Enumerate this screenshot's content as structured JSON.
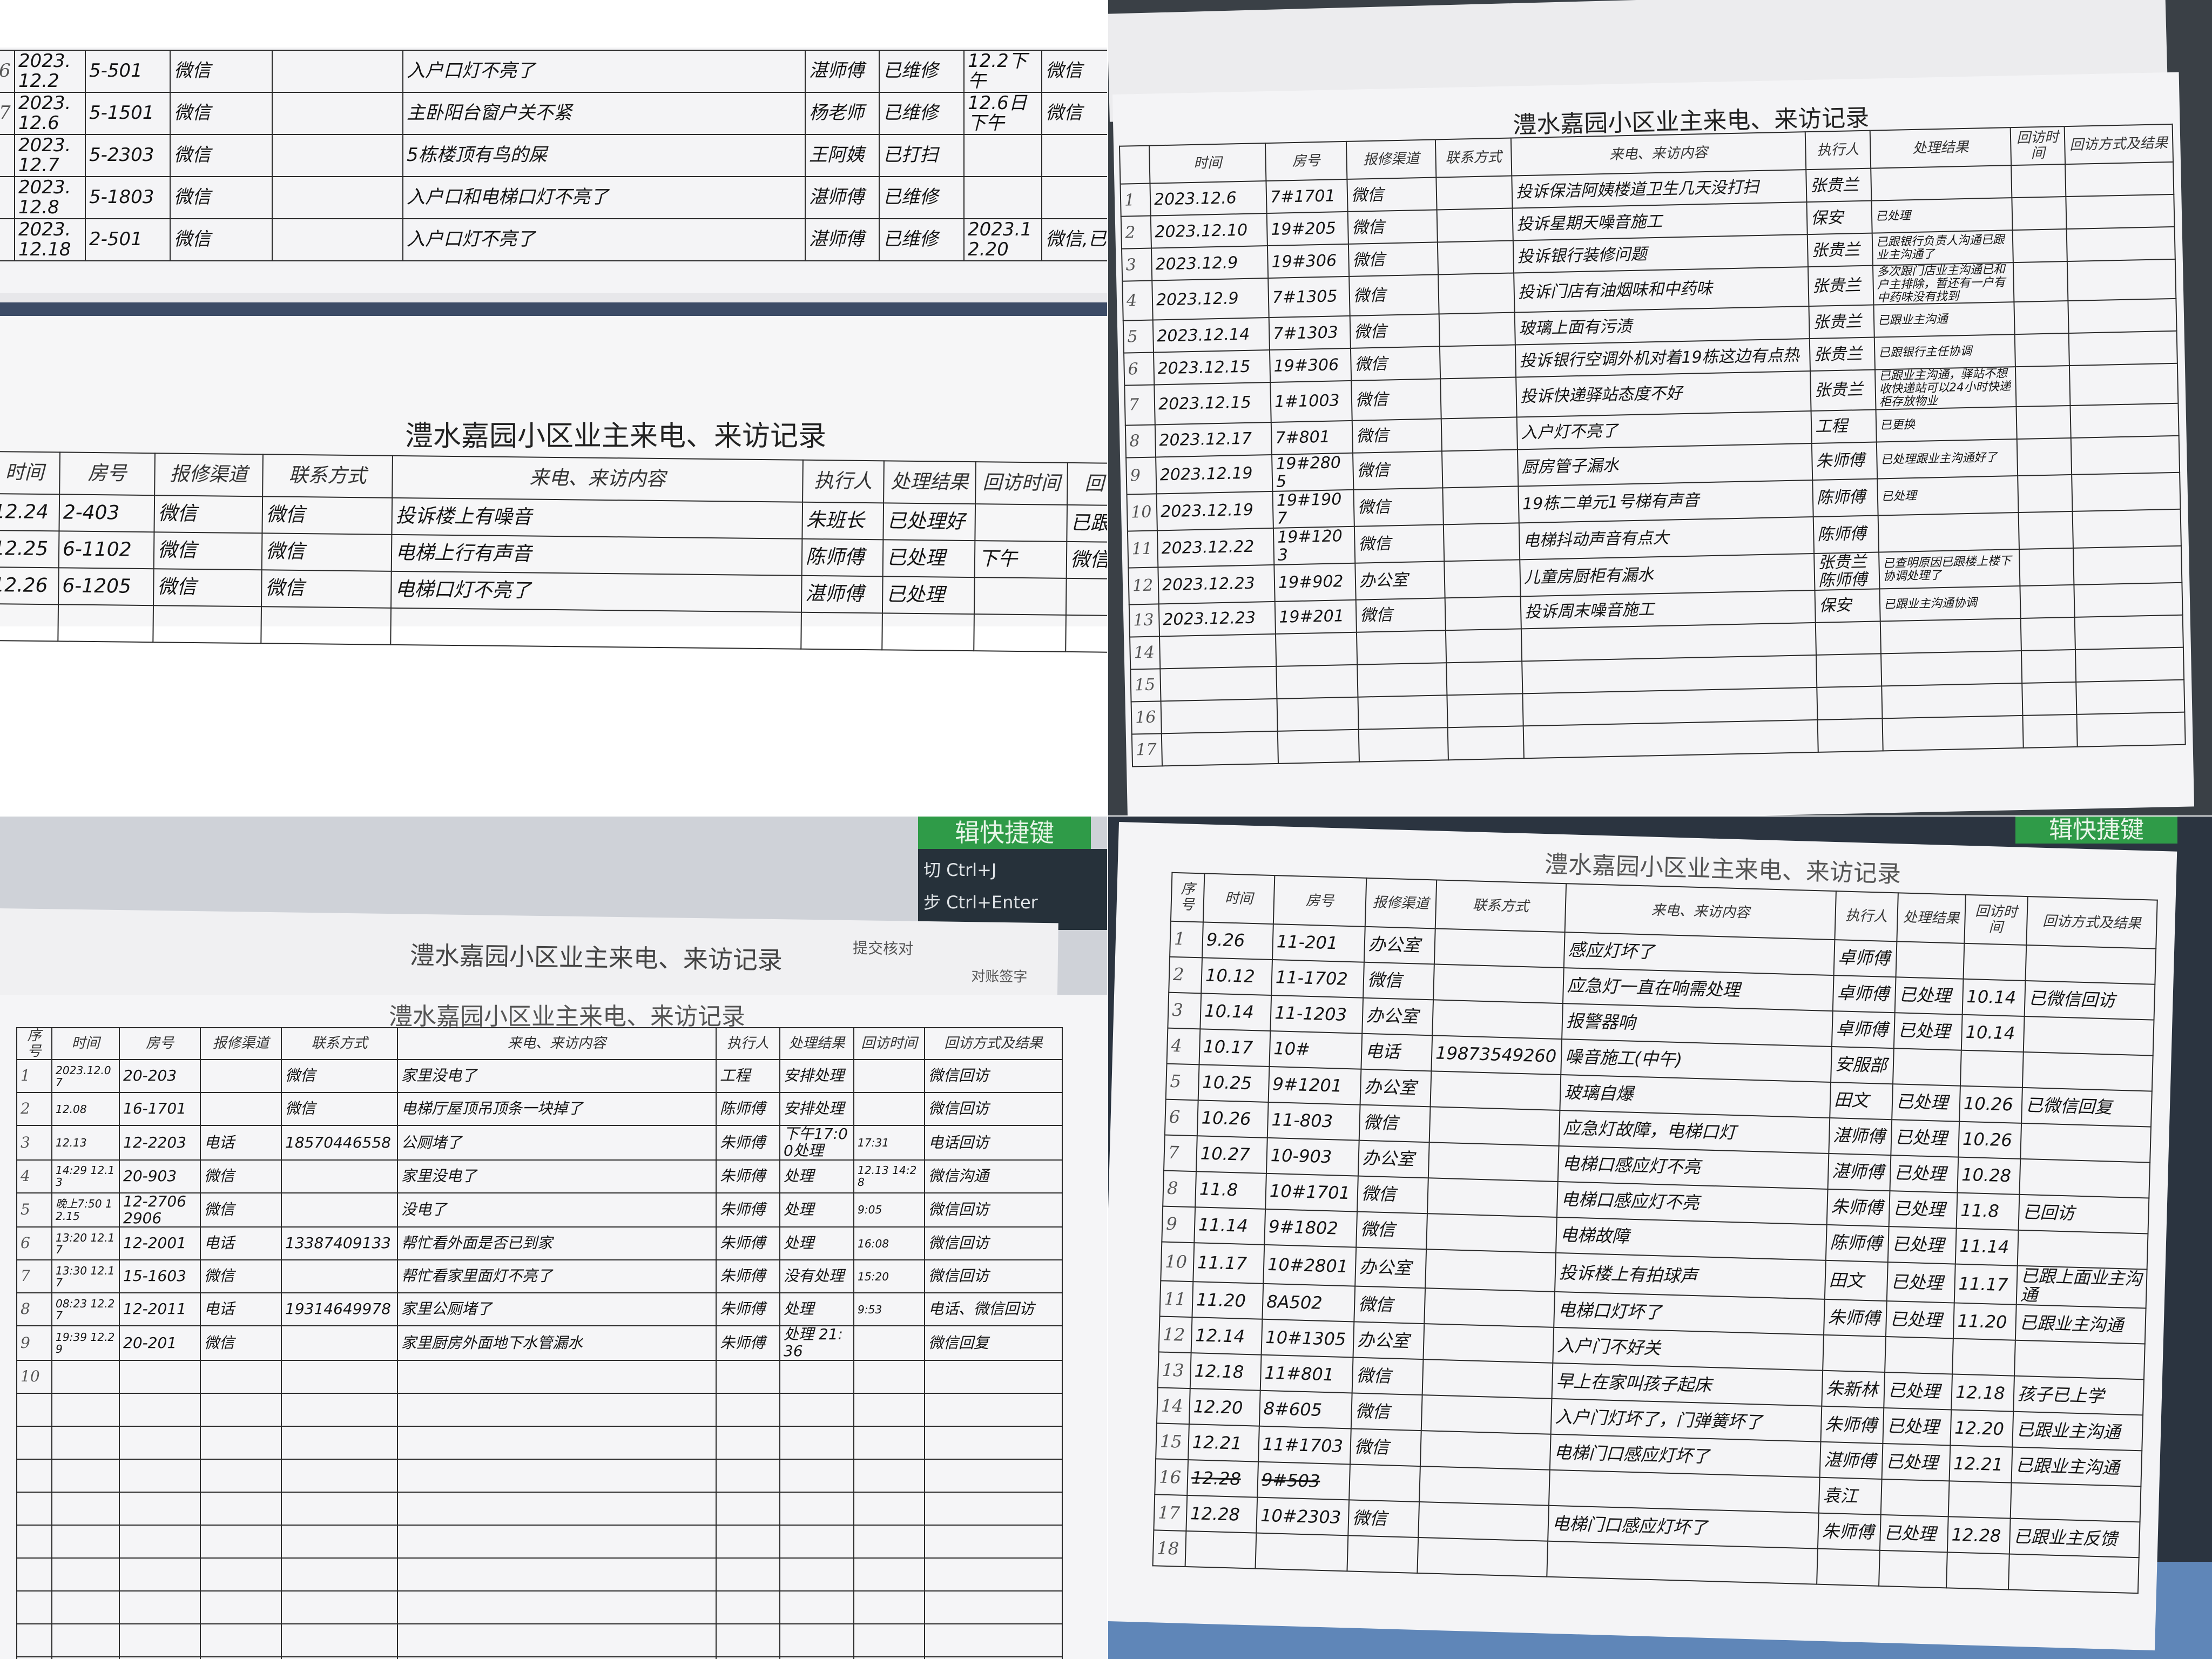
{
  "form_title": "澧水嘉园小区业主来电、来访记录",
  "columns": [
    "序号",
    "时间",
    "房号",
    "报修渠道",
    "联系方式",
    "来电、来访内容",
    "执行人",
    "处理结果",
    "回访时间",
    "回访方式及结果"
  ],
  "panels": [
    {
      "id": "top-left-upper",
      "header": null,
      "rows": [
        [
          "6",
          "2023.12.2",
          "5-501",
          "微信",
          "",
          "入户口灯不亮了",
          "湛师傅",
          "已维修",
          "12.2下午",
          "微信"
        ],
        [
          "7",
          "2023.12.6",
          "5-1501",
          "微信",
          "",
          "主卧阳台窗户关不紧",
          "杨老师",
          "已维修",
          "12.6日下午",
          "微信"
        ],
        [
          "",
          "2023.12.7",
          "5-2303",
          "微信",
          "",
          "5栋楼顶有鸟的屎",
          "王阿姨",
          "已打扫",
          "",
          ""
        ],
        [
          "",
          "2023.12.8",
          "5-1803",
          "微信",
          "",
          "入户口和电梯口灯不亮了",
          "湛师傅",
          "已维修",
          "",
          ""
        ],
        [
          "",
          "2023.12.18",
          "2-501",
          "微信",
          "",
          "入户口灯不亮了",
          "湛师傅",
          "已维修",
          "2023.12.20",
          "微信,已"
        ]
      ]
    },
    {
      "id": "top-left-lower",
      "header": [
        "时间",
        "房号",
        "报修渠道",
        "联系方式",
        "来电、来访内容",
        "执行人",
        "处理结果",
        "回访时间",
        "回"
      ],
      "rows": [
        [
          "12.24",
          "2-403",
          "微信",
          "微信",
          "投诉楼上有噪音",
          "朱班长",
          "已处理好",
          "",
          "已跟"
        ],
        [
          "12.25",
          "6-1102",
          "微信",
          "微信",
          "电梯上行有声音",
          "陈师傅",
          "已处理",
          "下午",
          "微信"
        ],
        [
          "12.26",
          "6-1205",
          "微信",
          "微信",
          "电梯口灯不亮了",
          "湛师傅",
          "已处理",
          "",
          ""
        ],
        [
          "",
          "",
          "",
          "",
          "",
          "",
          "",
          "",
          ""
        ]
      ]
    },
    {
      "id": "top-right",
      "header": [
        "",
        "时间",
        "房号",
        "报修渠道",
        "联系方式",
        "来电、来访内容",
        "执行人",
        "处理结果",
        "回访时间",
        "回访方式及结果"
      ],
      "rows": [
        [
          "1",
          "2023.12.6",
          "7#1701",
          "微信",
          "",
          "投诉保洁阿姨楼道卫生几天没打扫",
          "张贵兰",
          "",
          "",
          ""
        ],
        [
          "2",
          "2023.12.10",
          "19#205",
          "微信",
          "",
          "投诉星期天噪音施工",
          "保安",
          "已处理",
          "",
          ""
        ],
        [
          "3",
          "2023.12.9",
          "19#306",
          "微信",
          "",
          "投诉银行装修问题",
          "张贵兰",
          "已跟银行负责人沟通已跟业主沟通了",
          "",
          ""
        ],
        [
          "4",
          "2023.12.9",
          "7#1305",
          "微信",
          "",
          "投诉门店有油烟味和中药味",
          "张贵兰",
          "多次跟门店业主沟通已和户主排除，暂还有一户有中药味没有找到",
          "",
          ""
        ],
        [
          "5",
          "2023.12.14",
          "7#1303",
          "微信",
          "",
          "玻璃上面有污渍",
          "张贵兰",
          "已跟业主沟通",
          "",
          ""
        ],
        [
          "6",
          "2023.12.15",
          "19#306",
          "微信",
          "",
          "投诉银行空调外机对着19栋这边有点热",
          "张贵兰",
          "已跟银行主任协调",
          "",
          ""
        ],
        [
          "7",
          "2023.12.15",
          "1#1003",
          "微信",
          "",
          "投诉快递驿站态度不好",
          "张贵兰",
          "已跟业主沟通，驿站不想收快递站可以24小时快递柜存放物业",
          "",
          ""
        ],
        [
          "8",
          "2023.12.17",
          "7#801",
          "微信",
          "",
          "入户灯不亮了",
          "工程",
          "已更换",
          "",
          ""
        ],
        [
          "9",
          "2023.12.19",
          "19#2805",
          "微信",
          "",
          "厨房管子漏水",
          "朱师傅",
          "已处理跟业主沟通好了",
          "",
          ""
        ],
        [
          "10",
          "2023.12.19",
          "19#1907",
          "微信",
          "",
          "19栋二单元1号梯有声音",
          "陈师傅",
          "已处理",
          "",
          ""
        ],
        [
          "11",
          "2023.12.22",
          "19#1203",
          "微信",
          "",
          "电梯抖动声音有点大",
          "陈师傅",
          "",
          "",
          ""
        ],
        [
          "12",
          "2023.12.23",
          "19#902",
          "办公室",
          "",
          "儿童房厨柜有漏水",
          "张贵兰 陈师傅",
          "已查明原因已跟楼上楼下协调处理了",
          "",
          ""
        ],
        [
          "13",
          "2023.12.23",
          "19#201",
          "微信",
          "",
          "投诉周末噪音施工",
          "保安",
          "已跟业主沟通协调",
          "",
          ""
        ],
        [
          "14",
          "",
          "",
          "",
          "",
          "",
          "",
          "",
          "",
          ""
        ],
        [
          "15",
          "",
          "",
          "",
          "",
          "",
          "",
          "",
          "",
          ""
        ],
        [
          "16",
          "",
          "",
          "",
          "",
          "",
          "",
          "",
          "",
          ""
        ],
        [
          "17",
          "",
          "",
          "",
          "",
          "",
          "",
          "",
          "",
          ""
        ]
      ]
    },
    {
      "id": "bottom-left",
      "header": [
        "序号",
        "时间",
        "房号",
        "报修渠道",
        "联系方式",
        "来电、来访内容",
        "执行人",
        "处理结果",
        "回访时间",
        "回访方式及结果"
      ],
      "rows": [
        [
          "1",
          "2023.12.07",
          "20-203",
          "",
          "微信",
          "家里没电了",
          "工程",
          "安排处理",
          "",
          "微信回访"
        ],
        [
          "2",
          "12.08",
          "16-1701",
          "",
          "微信",
          "电梯厅屋顶吊顶条一块掉了",
          "陈师傅",
          "安排处理",
          "",
          "微信回访"
        ],
        [
          "3",
          "12.13",
          "12-2203",
          "电话",
          "18570446558",
          "公厕堵了",
          "朱师傅",
          "下午17:00处理",
          "17:31",
          "电话回访"
        ],
        [
          "4",
          "14:29 12.13",
          "20-903",
          "微信",
          "",
          "家里没电了",
          "朱师傅",
          "处理",
          "12.13 14:28",
          "微信沟通"
        ],
        [
          "5",
          "晚上7:50 12.15",
          "12-2706 2906",
          "微信",
          "",
          "没电了",
          "朱师傅",
          "处理",
          "9:05",
          "微信回访"
        ],
        [
          "6",
          "13:20 12.17",
          "12-2001",
          "电话",
          "13387409133",
          "帮忙看外面是否已到家",
          "朱师傅",
          "处理",
          "16:08",
          "微信回访"
        ],
        [
          "7",
          "13:30 12.17",
          "15-1603",
          "微信",
          "",
          "帮忙看家里面灯不亮了",
          "朱师傅",
          "没有处理",
          "15:20",
          "微信回访"
        ],
        [
          "8",
          "08:23 12.27",
          "12-2011",
          "电话",
          "19314649978",
          "家里公厕堵了",
          "朱师傅",
          "处理",
          "9:53",
          "电话、微信回访"
        ],
        [
          "9",
          "19:39 12.29",
          "20-201",
          "微信",
          "",
          "家里厨房外面地下水管漏水",
          "朱师傅",
          "处理 21:36",
          "",
          "微信回复"
        ],
        [
          "10",
          "",
          "",
          "",
          "",
          "",
          "",
          "",
          "",
          ""
        ],
        [
          "",
          "",
          "",
          "",
          "",
          "",
          "",
          "",
          "",
          ""
        ],
        [
          "",
          "",
          "",
          "",
          "",
          "",
          "",
          "",
          "",
          ""
        ],
        [
          "",
          "",
          "",
          "",
          "",
          "",
          "",
          "",
          "",
          ""
        ],
        [
          "",
          "",
          "",
          "",
          "",
          "",
          "",
          "",
          "",
          ""
        ],
        [
          "",
          "",
          "",
          "",
          "",
          "",
          "",
          "",
          "",
          ""
        ],
        [
          "",
          "",
          "",
          "",
          "",
          "",
          "",
          "",
          "",
          ""
        ],
        [
          "",
          "",
          "",
          "",
          "",
          "",
          "",
          "",
          "",
          ""
        ],
        [
          "",
          "",
          "",
          "",
          "",
          "",
          "",
          "",
          "",
          ""
        ],
        [
          "",
          "",
          "",
          "",
          "",
          "",
          "",
          "",
          "",
          ""
        ]
      ]
    },
    {
      "id": "bottom-right",
      "header": [
        "序号",
        "时间",
        "房号",
        "报修渠道",
        "联系方式",
        "来电、来访内容",
        "执行人",
        "处理结果",
        "回访时间",
        "回访方式及结果"
      ],
      "rows": [
        [
          "1",
          "9.26",
          "11-201",
          "办公室",
          "",
          "感应灯坏了",
          "卓师傅",
          "",
          "",
          ""
        ],
        [
          "2",
          "10.12",
          "11-1702",
          "微信",
          "",
          "应急灯一直在响需处理",
          "卓师傅",
          "已处理",
          "10.14",
          "已微信回访"
        ],
        [
          "3",
          "10.14",
          "11-1203",
          "办公室",
          "",
          "报警器响",
          "卓师傅",
          "已处理",
          "10.14",
          ""
        ],
        [
          "4",
          "10.17",
          "10#",
          "电话",
          "19873549260",
          "噪音施工(中午)",
          "安服部",
          "",
          "",
          ""
        ],
        [
          "5",
          "10.25",
          "9#1201",
          "办公室",
          "",
          "玻璃自爆",
          "田文",
          "已处理",
          "10.26",
          "已微信回复"
        ],
        [
          "6",
          "10.26",
          "11-803",
          "微信",
          "",
          "应急灯故障，电梯口灯",
          "湛师傅",
          "已处理",
          "10.26",
          ""
        ],
        [
          "7",
          "10.27",
          "10-903",
          "办公室",
          "",
          "电梯口感应灯不亮",
          "湛师傅",
          "已处理",
          "10.28",
          ""
        ],
        [
          "8",
          "11.8",
          "10#1701",
          "微信",
          "",
          "电梯口感应灯不亮",
          "朱师傅",
          "已处理",
          "11.8",
          "已回访"
        ],
        [
          "9",
          "11.14",
          "9#1802",
          "微信",
          "",
          "电梯故障",
          "陈师傅",
          "已处理",
          "11.14",
          ""
        ],
        [
          "10",
          "11.17",
          "10#2801",
          "办公室",
          "",
          "投诉楼上有拍球声",
          "田文",
          "已处理",
          "11.17",
          "已跟上面业主沟通"
        ],
        [
          "11",
          "11.20",
          "8A502",
          "微信",
          "",
          "电梯口灯坏了",
          "朱师傅",
          "已处理",
          "11.20",
          "已跟业主沟通"
        ],
        [
          "12",
          "12.14",
          "10#1305",
          "办公室",
          "",
          "入户门不好关",
          "",
          "",
          "",
          ""
        ],
        [
          "13",
          "12.18",
          "11#801",
          "微信",
          "",
          "早上在家叫孩子起床",
          "朱新林",
          "已处理",
          "12.18",
          "孩子已上学"
        ],
        [
          "14",
          "12.20",
          "8#605",
          "微信",
          "",
          "入户门灯坏了，门弹簧坏了",
          "朱师傅",
          "已处理",
          "12.20",
          "已跟业主沟通"
        ],
        [
          "15",
          "12.21",
          "11#1703",
          "微信",
          "",
          "电梯门口感应灯坏了",
          "湛师傅",
          "已处理",
          "12.21",
          "已跟业主沟通"
        ],
        [
          "16",
          "12.28",
          "9#503",
          "",
          "",
          "",
          "袁江",
          "",
          "",
          ""
        ],
        [
          "17",
          "12.28",
          "10#2303",
          "微信",
          "",
          "电梯门口感应灯坏了",
          "朱师傅",
          "已处理",
          "12.28",
          "已跟业主反馈"
        ],
        [
          "18",
          "",
          "",
          "",
          "",
          "",
          "",
          "",
          "",
          ""
        ]
      ]
    }
  ],
  "background_text": {
    "back_sheet_check": "提交核对",
    "back_sheet_sign": "对账签字",
    "shortcut_banner": "辑快捷键",
    "shortcut_1": "切  Ctrl+J",
    "shortcut_2": "步  Ctrl+Enter",
    "shortcut_banner_right": "辑快捷键"
  }
}
